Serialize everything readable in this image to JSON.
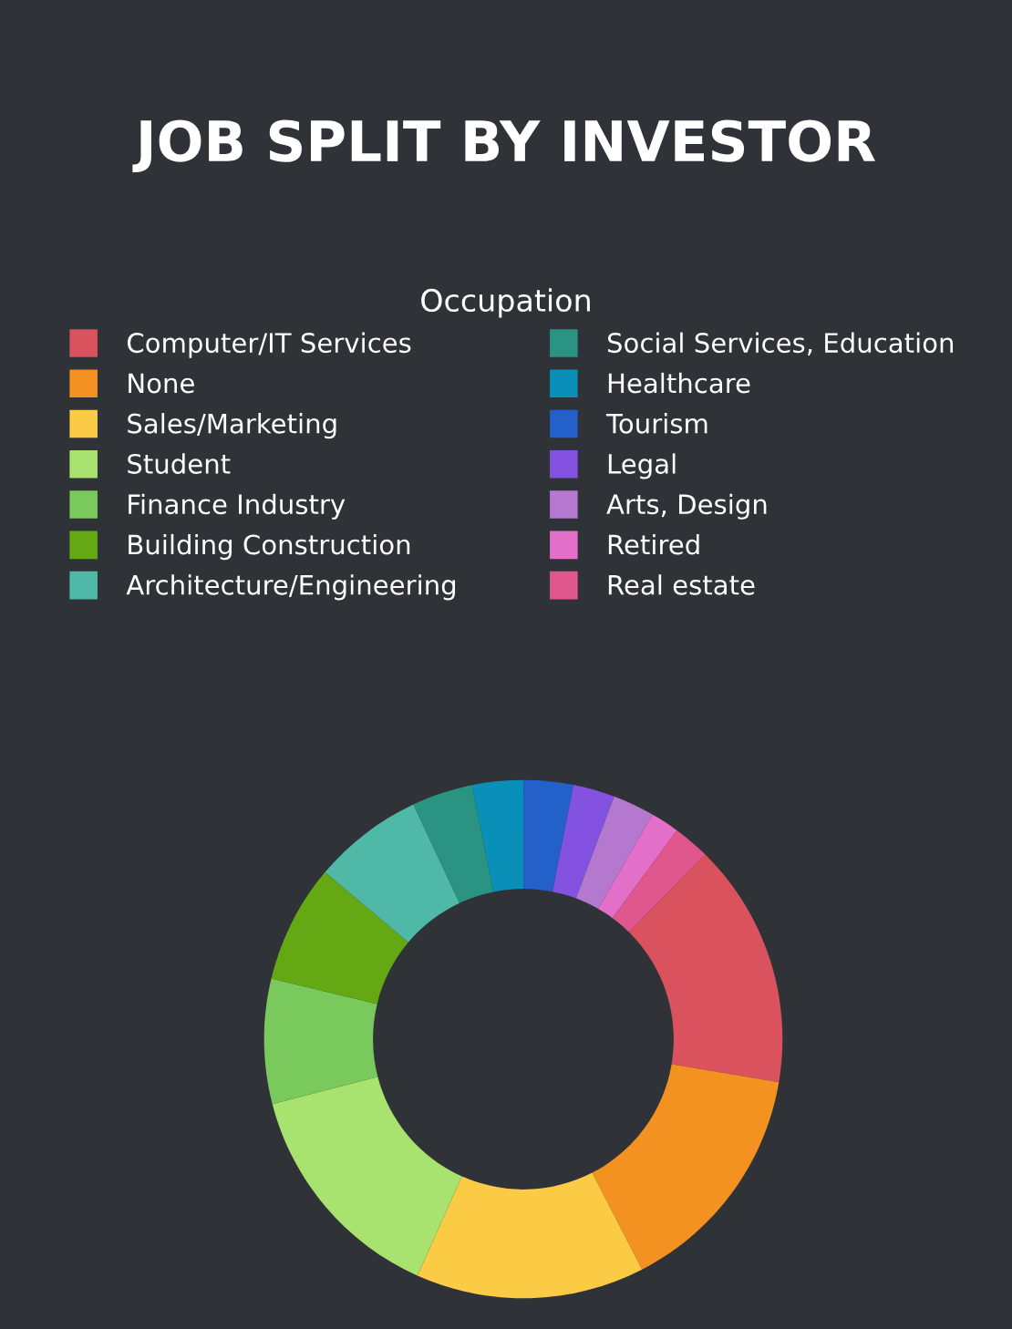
{
  "chart_data": {
    "type": "donut",
    "title": "JOB SPLIT BY INVESTOR",
    "legend_title": "Occupation",
    "legend": "top",
    "categories": [
      "Computer/IT Services",
      "None",
      "Sales/Marketing",
      "Student",
      "Finance Industry",
      "Building Construction",
      "Architecture/Engineering",
      "Social Services, Education",
      "Healthcare",
      "Tourism",
      "Legal",
      "Arts, Design",
      "Retired",
      "Real estate"
    ],
    "values": [
      15.3,
      14.8,
      14.3,
      14.3,
      7.8,
      7.4,
      6.9,
      3.8,
      3.2,
      3.1,
      2.6,
      2.6,
      1.8,
      2.3
    ],
    "colors": [
      "#d9525e",
      "#f39220",
      "#fbcb46",
      "#a8e26f",
      "#79c95c",
      "#64a914",
      "#4fb8a6",
      "#2a9382",
      "#0a8fb8",
      "#2360c9",
      "#8452e0",
      "#b479cf",
      "#e270c8",
      "#e0578e"
    ]
  }
}
